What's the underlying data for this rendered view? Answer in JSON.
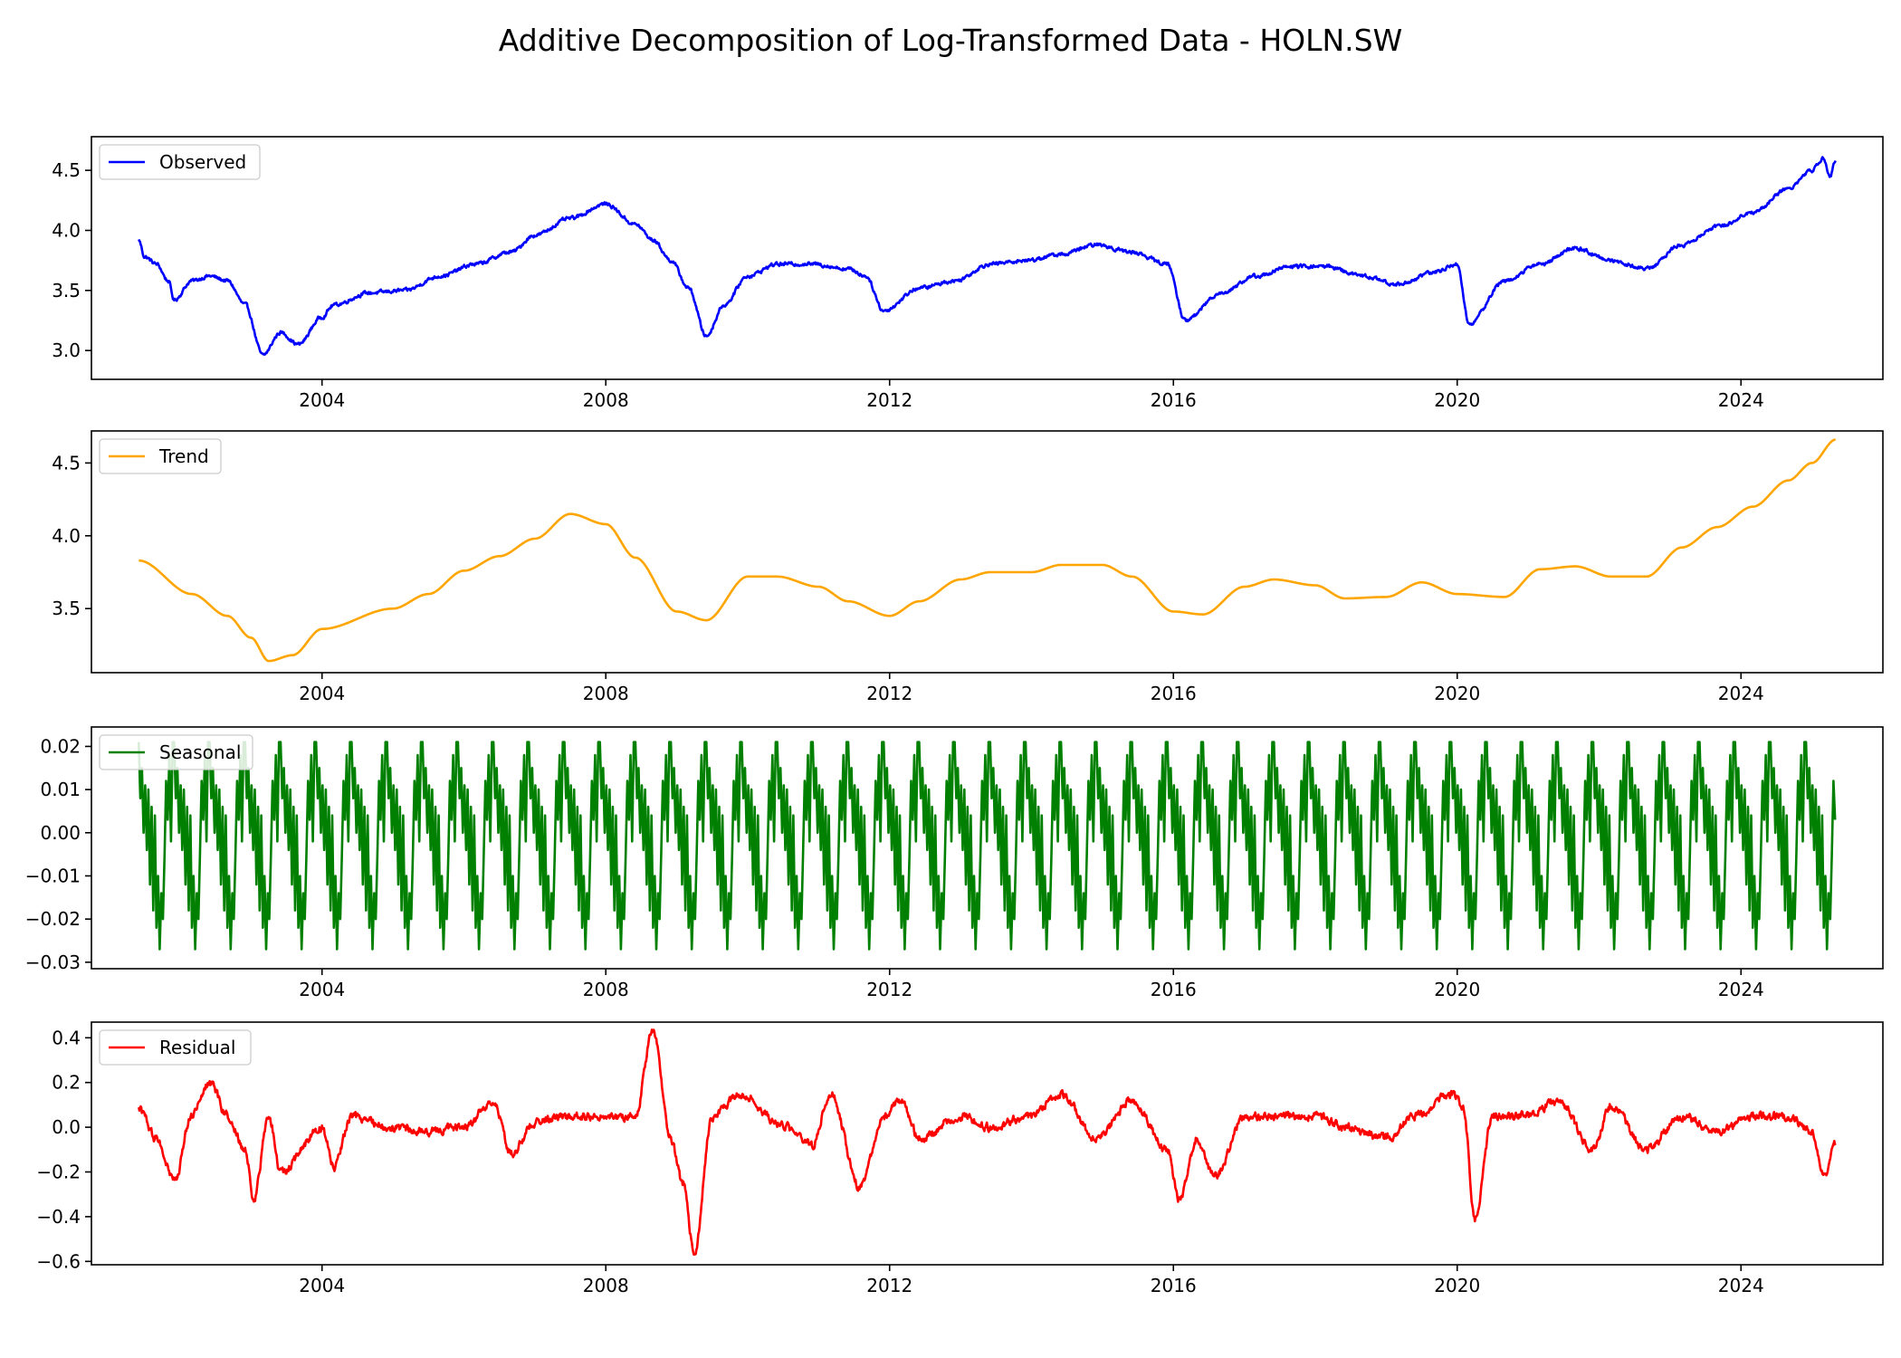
{
  "chart_data": [
    {
      "type": "line",
      "title": "Additive Decomposition of Log-Transformed Data - HOLN.SW",
      "panel": "observed",
      "legend": "top-left",
      "grid": false,
      "x_range": [
        "2000-10-01",
        "2026-01-01"
      ],
      "x_ticks": [
        "2004",
        "2008",
        "2012",
        "2016",
        "2020",
        "2024"
      ],
      "ylim": [
        2.76,
        4.78
      ],
      "y_ticks": [
        "3.0",
        "3.5",
        "4.0",
        "4.5"
      ],
      "series": [
        {
          "name": "Observed",
          "color": "#0000ff",
          "noise": 0.025,
          "points": [
            [
              "2001-06-01",
              3.92
            ],
            [
              "2001-07-01",
              3.78
            ],
            [
              "2001-09-01",
              3.72
            ],
            [
              "2001-11-01",
              3.58
            ],
            [
              "2001-12-01",
              3.42
            ],
            [
              "2002-03-01",
              3.58
            ],
            [
              "2002-06-01",
              3.62
            ],
            [
              "2002-09-01",
              3.58
            ],
            [
              "2002-12-01",
              3.38
            ],
            [
              "2003-03-01",
              2.96
            ],
            [
              "2003-06-01",
              3.15
            ],
            [
              "2003-09-01",
              3.05
            ],
            [
              "2004-01-01",
              3.28
            ],
            [
              "2004-03-01",
              3.38
            ],
            [
              "2004-09-01",
              3.48
            ],
            [
              "2005-03-01",
              3.5
            ],
            [
              "2005-09-01",
              3.62
            ],
            [
              "2006-03-01",
              3.72
            ],
            [
              "2006-09-01",
              3.82
            ],
            [
              "2007-01-01",
              3.96
            ],
            [
              "2007-07-01",
              4.1
            ],
            [
              "2008-01-01",
              4.22
            ],
            [
              "2008-06-01",
              4.05
            ],
            [
              "2008-09-01",
              3.92
            ],
            [
              "2008-12-01",
              3.75
            ],
            [
              "2009-03-01",
              3.52
            ],
            [
              "2009-06-01",
              3.12
            ],
            [
              "2009-09-01",
              3.38
            ],
            [
              "2010-01-01",
              3.62
            ],
            [
              "2010-06-01",
              3.72
            ],
            [
              "2010-12-01",
              3.72
            ],
            [
              "2011-06-01",
              3.68
            ],
            [
              "2011-09-01",
              3.62
            ],
            [
              "2011-12-01",
              3.33
            ],
            [
              "2012-06-01",
              3.52
            ],
            [
              "2012-12-01",
              3.58
            ],
            [
              "2013-06-01",
              3.72
            ],
            [
              "2013-12-01",
              3.75
            ],
            [
              "2014-06-01",
              3.8
            ],
            [
              "2014-12-01",
              3.88
            ],
            [
              "2015-06-01",
              3.82
            ],
            [
              "2015-12-01",
              3.72
            ],
            [
              "2016-03-01",
              3.25
            ],
            [
              "2016-09-01",
              3.48
            ],
            [
              "2017-03-01",
              3.62
            ],
            [
              "2017-09-01",
              3.7
            ],
            [
              "2018-03-01",
              3.7
            ],
            [
              "2018-09-01",
              3.62
            ],
            [
              "2019-03-01",
              3.55
            ],
            [
              "2019-09-01",
              3.65
            ],
            [
              "2020-01-01",
              3.72
            ],
            [
              "2020-03-01",
              3.22
            ],
            [
              "2020-09-01",
              3.58
            ],
            [
              "2021-03-01",
              3.72
            ],
            [
              "2021-09-01",
              3.85
            ],
            [
              "2022-03-01",
              3.75
            ],
            [
              "2022-09-01",
              3.68
            ],
            [
              "2023-03-01",
              3.88
            ],
            [
              "2023-09-01",
              4.03
            ],
            [
              "2024-03-01",
              4.15
            ],
            [
              "2024-09-01",
              4.35
            ],
            [
              "2025-01-01",
              4.5
            ],
            [
              "2025-03-01",
              4.6
            ],
            [
              "2025-04-01",
              4.45
            ],
            [
              "2025-05-01",
              4.58
            ]
          ]
        }
      ]
    },
    {
      "type": "line",
      "panel": "trend",
      "legend": "top-left",
      "grid": false,
      "x_range": [
        "2000-10-01",
        "2026-01-01"
      ],
      "x_ticks": [
        "2004",
        "2008",
        "2012",
        "2016",
        "2020",
        "2024"
      ],
      "ylim": [
        3.06,
        4.72
      ],
      "y_ticks": [
        "3.5",
        "4.0",
        "4.5"
      ],
      "series": [
        {
          "name": "Trend",
          "color": "#ffa500",
          "noise": 0,
          "points": [
            [
              "2001-06-01",
              3.83
            ],
            [
              "2002-03-01",
              3.6
            ],
            [
              "2002-09-01",
              3.45
            ],
            [
              "2003-01-01",
              3.3
            ],
            [
              "2003-04-01",
              3.14
            ],
            [
              "2003-08-01",
              3.18
            ],
            [
              "2004-01-01",
              3.36
            ],
            [
              "2005-01-01",
              3.5
            ],
            [
              "2005-07-01",
              3.6
            ],
            [
              "2006-01-01",
              3.76
            ],
            [
              "2006-07-01",
              3.86
            ],
            [
              "2007-01-01",
              3.98
            ],
            [
              "2007-07-01",
              4.15
            ],
            [
              "2008-01-01",
              4.08
            ],
            [
              "2008-06-01",
              3.85
            ],
            [
              "2009-01-01",
              3.48
            ],
            [
              "2009-06-01",
              3.42
            ],
            [
              "2010-01-01",
              3.72
            ],
            [
              "2010-06-01",
              3.72
            ],
            [
              "2011-01-01",
              3.65
            ],
            [
              "2011-06-01",
              3.55
            ],
            [
              "2012-01-01",
              3.45
            ],
            [
              "2012-06-01",
              3.55
            ],
            [
              "2013-01-01",
              3.7
            ],
            [
              "2013-06-01",
              3.75
            ],
            [
              "2014-01-01",
              3.75
            ],
            [
              "2014-06-01",
              3.8
            ],
            [
              "2015-01-01",
              3.8
            ],
            [
              "2015-06-01",
              3.72
            ],
            [
              "2016-01-01",
              3.48
            ],
            [
              "2016-06-01",
              3.46
            ],
            [
              "2017-01-01",
              3.65
            ],
            [
              "2017-06-01",
              3.7
            ],
            [
              "2018-01-01",
              3.66
            ],
            [
              "2018-06-01",
              3.57
            ],
            [
              "2019-01-01",
              3.58
            ],
            [
              "2019-07-01",
              3.68
            ],
            [
              "2020-01-01",
              3.6
            ],
            [
              "2020-09-01",
              3.58
            ],
            [
              "2021-03-01",
              3.77
            ],
            [
              "2021-09-01",
              3.79
            ],
            [
              "2022-03-01",
              3.72
            ],
            [
              "2022-09-01",
              3.72
            ],
            [
              "2023-03-01",
              3.92
            ],
            [
              "2023-09-01",
              4.06
            ],
            [
              "2024-03-01",
              4.2
            ],
            [
              "2024-09-01",
              4.38
            ],
            [
              "2025-01-01",
              4.5
            ],
            [
              "2025-05-01",
              4.66
            ]
          ]
        }
      ]
    },
    {
      "type": "line",
      "panel": "seasonal",
      "legend": "top-left",
      "grid": false,
      "x_range": [
        "2000-10-01",
        "2026-01-01"
      ],
      "x_ticks": [
        "2004",
        "2008",
        "2012",
        "2016",
        "2020",
        "2024"
      ],
      "ylim": [
        -0.0315,
        0.0245
      ],
      "y_ticks": [
        "0.02",
        "0.01",
        "0.00",
        "−0.01",
        "−0.02",
        "−0.03"
      ],
      "period_years": 0.5,
      "start": "2001-06-01",
      "end": "2025-05-01",
      "series": [
        {
          "name": "Seasonal",
          "color": "#008000",
          "cycle": [
            0.021,
            0.008,
            0.015,
            0.0,
            0.011,
            -0.004,
            0.01,
            -0.012,
            0.006,
            -0.018,
            0.004,
            -0.022,
            -0.01,
            -0.027,
            -0.014,
            -0.02,
            -0.005,
            0.012,
            0.003,
            0.018,
            -0.002,
            0.021
          ]
        }
      ]
    },
    {
      "type": "line",
      "panel": "residual",
      "legend": "top-left",
      "grid": false,
      "x_range": [
        "2000-10-01",
        "2026-01-01"
      ],
      "x_ticks": [
        "2004",
        "2008",
        "2012",
        "2016",
        "2020",
        "2024"
      ],
      "ylim": [
        -0.615,
        0.47
      ],
      "y_ticks": [
        "0.4",
        "0.2",
        "0.0",
        "−0.2",
        "−0.4",
        "−0.6"
      ],
      "series": [
        {
          "name": "Residual",
          "color": "#ff0000",
          "noise": 0.03,
          "points": [
            [
              "2001-06-01",
              0.08
            ],
            [
              "2001-09-01",
              -0.05
            ],
            [
              "2001-12-01",
              -0.24
            ],
            [
              "2002-03-01",
              0.05
            ],
            [
              "2002-06-01",
              0.2
            ],
            [
              "2002-09-01",
              0.05
            ],
            [
              "2002-12-01",
              -0.1
            ],
            [
              "2003-01-15",
              -0.32
            ],
            [
              "2003-04-01",
              0.05
            ],
            [
              "2003-06-01",
              -0.2
            ],
            [
              "2004-01-01",
              0.0
            ],
            [
              "2004-03-01",
              -0.18
            ],
            [
              "2004-06-01",
              0.05
            ],
            [
              "2005-01-01",
              0.0
            ],
            [
              "2005-06-01",
              -0.02
            ],
            [
              "2006-01-01",
              0.0
            ],
            [
              "2006-06-01",
              0.12
            ],
            [
              "2006-09-01",
              -0.12
            ],
            [
              "2007-01-01",
              0.02
            ],
            [
              "2007-06-01",
              0.05
            ],
            [
              "2008-01-01",
              0.05
            ],
            [
              "2008-06-01",
              0.05
            ],
            [
              "2008-09-01",
              0.44
            ],
            [
              "2008-12-01",
              -0.05
            ],
            [
              "2009-02-01",
              -0.25
            ],
            [
              "2009-04-01",
              -0.56
            ],
            [
              "2009-07-01",
              0.05
            ],
            [
              "2009-12-01",
              0.15
            ],
            [
              "2010-06-01",
              0.02
            ],
            [
              "2010-12-01",
              -0.08
            ],
            [
              "2011-03-01",
              0.15
            ],
            [
              "2011-08-01",
              -0.27
            ],
            [
              "2011-12-01",
              0.05
            ],
            [
              "2012-03-01",
              0.12
            ],
            [
              "2012-06-01",
              -0.05
            ],
            [
              "2013-01-01",
              0.05
            ],
            [
              "2013-06-01",
              0.0
            ],
            [
              "2014-01-01",
              0.05
            ],
            [
              "2014-06-01",
              0.15
            ],
            [
              "2014-12-01",
              -0.05
            ],
            [
              "2015-06-01",
              0.12
            ],
            [
              "2015-12-01",
              -0.1
            ],
            [
              "2016-02-01",
              -0.33
            ],
            [
              "2016-05-01",
              -0.05
            ],
            [
              "2016-08-01",
              -0.22
            ],
            [
              "2017-01-01",
              0.05
            ],
            [
              "2017-06-01",
              0.05
            ],
            [
              "2018-01-01",
              0.05
            ],
            [
              "2018-06-01",
              0.0
            ],
            [
              "2019-01-01",
              -0.05
            ],
            [
              "2019-06-01",
              0.05
            ],
            [
              "2019-12-01",
              0.15
            ],
            [
              "2020-02-01",
              0.1
            ],
            [
              "2020-04-01",
              -0.42
            ],
            [
              "2020-07-01",
              0.05
            ],
            [
              "2021-01-01",
              0.05
            ],
            [
              "2021-06-01",
              0.12
            ],
            [
              "2021-12-01",
              -0.1
            ],
            [
              "2022-03-01",
              0.1
            ],
            [
              "2022-09-01",
              -0.1
            ],
            [
              "2023-03-01",
              0.05
            ],
            [
              "2023-09-01",
              -0.02
            ],
            [
              "2024-03-01",
              0.05
            ],
            [
              "2024-09-01",
              0.05
            ],
            [
              "2025-01-01",
              -0.02
            ],
            [
              "2025-03-01",
              -0.22
            ],
            [
              "2025-05-01",
              -0.08
            ]
          ]
        }
      ]
    }
  ]
}
